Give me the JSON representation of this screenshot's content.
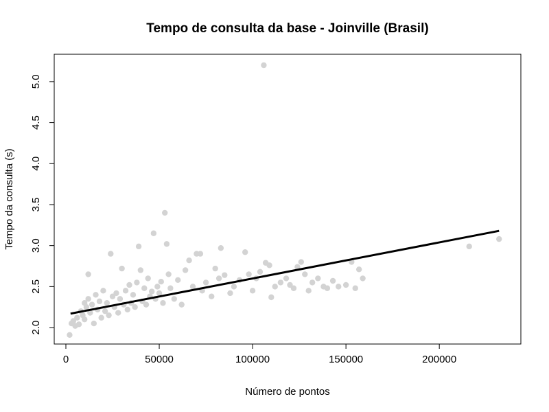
{
  "chart_data": {
    "type": "scatter",
    "title": "Tempo de consulta da base - Joinville (Brasil)",
    "xlabel": "Número de pontos",
    "ylabel": "Tempo da consulta (s)",
    "xlim": [
      0,
      240000
    ],
    "ylim": [
      1.9,
      5.2
    ],
    "x_ticks": [
      0,
      50000,
      100000,
      150000,
      200000
    ],
    "y_ticks": [
      2.0,
      2.5,
      3.0,
      3.5,
      4.0,
      4.5,
      5.0
    ],
    "x_tick_labels": [
      "0",
      "50000",
      "100000",
      "150000",
      "200000"
    ],
    "y_tick_labels": [
      "2.0",
      "2.5",
      "3.0",
      "3.5",
      "4.0",
      "4.5",
      "5.0"
    ],
    "grid": false,
    "point_color": "#d3d3d3",
    "line_color": "#000000",
    "points": [
      [
        2000,
        1.91
      ],
      [
        3000,
        2.05
      ],
      [
        4000,
        2.08
      ],
      [
        5000,
        2.02
      ],
      [
        6000,
        2.12
      ],
      [
        7000,
        2.04
      ],
      [
        8000,
        2.2
      ],
      [
        9000,
        2.15
      ],
      [
        10000,
        2.3
      ],
      [
        10000,
        2.1
      ],
      [
        11000,
        2.25
      ],
      [
        12000,
        2.35
      ],
      [
        12000,
        2.65
      ],
      [
        13000,
        2.18
      ],
      [
        14000,
        2.28
      ],
      [
        15000,
        2.05
      ],
      [
        16000,
        2.4
      ],
      [
        17000,
        2.22
      ],
      [
        18000,
        2.32
      ],
      [
        19000,
        2.12
      ],
      [
        20000,
        2.45
      ],
      [
        21000,
        2.2
      ],
      [
        22000,
        2.3
      ],
      [
        23000,
        2.15
      ],
      [
        24000,
        2.9
      ],
      [
        25000,
        2.38
      ],
      [
        26000,
        2.25
      ],
      [
        27000,
        2.42
      ],
      [
        28000,
        2.18
      ],
      [
        29000,
        2.35
      ],
      [
        30000,
        2.72
      ],
      [
        31000,
        2.28
      ],
      [
        32000,
        2.45
      ],
      [
        33000,
        2.22
      ],
      [
        34000,
        2.52
      ],
      [
        35000,
        2.3
      ],
      [
        36000,
        2.4
      ],
      [
        37000,
        2.25
      ],
      [
        38000,
        2.55
      ],
      [
        39000,
        2.99
      ],
      [
        40000,
        2.7
      ],
      [
        41000,
        2.32
      ],
      [
        42000,
        2.48
      ],
      [
        43000,
        2.28
      ],
      [
        44000,
        2.6
      ],
      [
        45000,
        2.38
      ],
      [
        46000,
        2.44
      ],
      [
        47000,
        3.15
      ],
      [
        48000,
        2.35
      ],
      [
        49000,
        2.5
      ],
      [
        50000,
        2.42
      ],
      [
        51000,
        2.56
      ],
      [
        52000,
        2.3
      ],
      [
        53000,
        3.4
      ],
      [
        54000,
        3.02
      ],
      [
        55000,
        2.65
      ],
      [
        56000,
        2.48
      ],
      [
        58000,
        2.35
      ],
      [
        60000,
        2.58
      ],
      [
        62000,
        2.28
      ],
      [
        64000,
        2.7
      ],
      [
        66000,
        2.82
      ],
      [
        68000,
        2.5
      ],
      [
        70000,
        2.9
      ],
      [
        72000,
        2.9
      ],
      [
        73000,
        2.45
      ],
      [
        75000,
        2.55
      ],
      [
        78000,
        2.38
      ],
      [
        80000,
        2.72
      ],
      [
        82000,
        2.6
      ],
      [
        83000,
        2.97
      ],
      [
        85000,
        2.64
      ],
      [
        88000,
        2.42
      ],
      [
        90000,
        2.5
      ],
      [
        93000,
        2.58
      ],
      [
        96000,
        2.92
      ],
      [
        98000,
        2.65
      ],
      [
        100000,
        2.45
      ],
      [
        102000,
        2.6
      ],
      [
        104000,
        2.68
      ],
      [
        106000,
        5.2
      ],
      [
        107000,
        2.79
      ],
      [
        109000,
        2.76
      ],
      [
        110000,
        2.37
      ],
      [
        112000,
        2.5
      ],
      [
        115000,
        2.55
      ],
      [
        118000,
        2.6
      ],
      [
        120000,
        2.52
      ],
      [
        122000,
        2.48
      ],
      [
        124000,
        2.74
      ],
      [
        126000,
        2.8
      ],
      [
        128000,
        2.65
      ],
      [
        130000,
        2.45
      ],
      [
        132000,
        2.55
      ],
      [
        135000,
        2.6
      ],
      [
        138000,
        2.5
      ],
      [
        140000,
        2.48
      ],
      [
        143000,
        2.57
      ],
      [
        146000,
        2.5
      ],
      [
        150000,
        2.52
      ],
      [
        153000,
        2.8
      ],
      [
        155000,
        2.48
      ],
      [
        157000,
        2.71
      ],
      [
        159000,
        2.6
      ],
      [
        216000,
        2.99
      ],
      [
        232000,
        3.08
      ]
    ],
    "regression_line": {
      "x1": 2500,
      "y1": 2.17,
      "x2": 232000,
      "y2": 3.18
    }
  }
}
